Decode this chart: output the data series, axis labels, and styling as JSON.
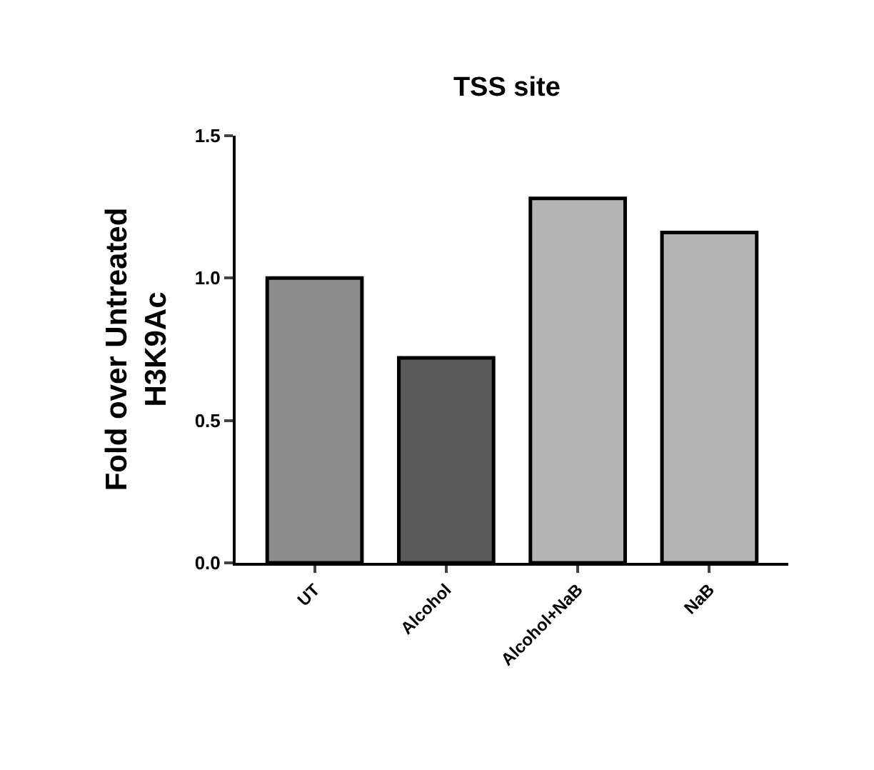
{
  "chart_data": {
    "type": "bar",
    "title": "TSS site",
    "ylabel": "Fold over Untreated\nH3K9Ac",
    "categories": [
      "UT",
      "Alcohol",
      "Alcohol+NaB",
      "NaB"
    ],
    "values": [
      1.0,
      0.72,
      1.28,
      1.16
    ],
    "colors": [
      "#8c8c8c",
      "#5a5a5a",
      "#b4b4b4",
      "#b4b4b4"
    ],
    "ylim": [
      0,
      1.5
    ],
    "yticks": [
      {
        "value": 0,
        "label": "0.0"
      },
      {
        "value": 0.5,
        "label": "0.5"
      },
      {
        "value": 1,
        "label": "1.0"
      },
      {
        "value": 1.5,
        "label": "1.5"
      }
    ],
    "grid": false
  }
}
